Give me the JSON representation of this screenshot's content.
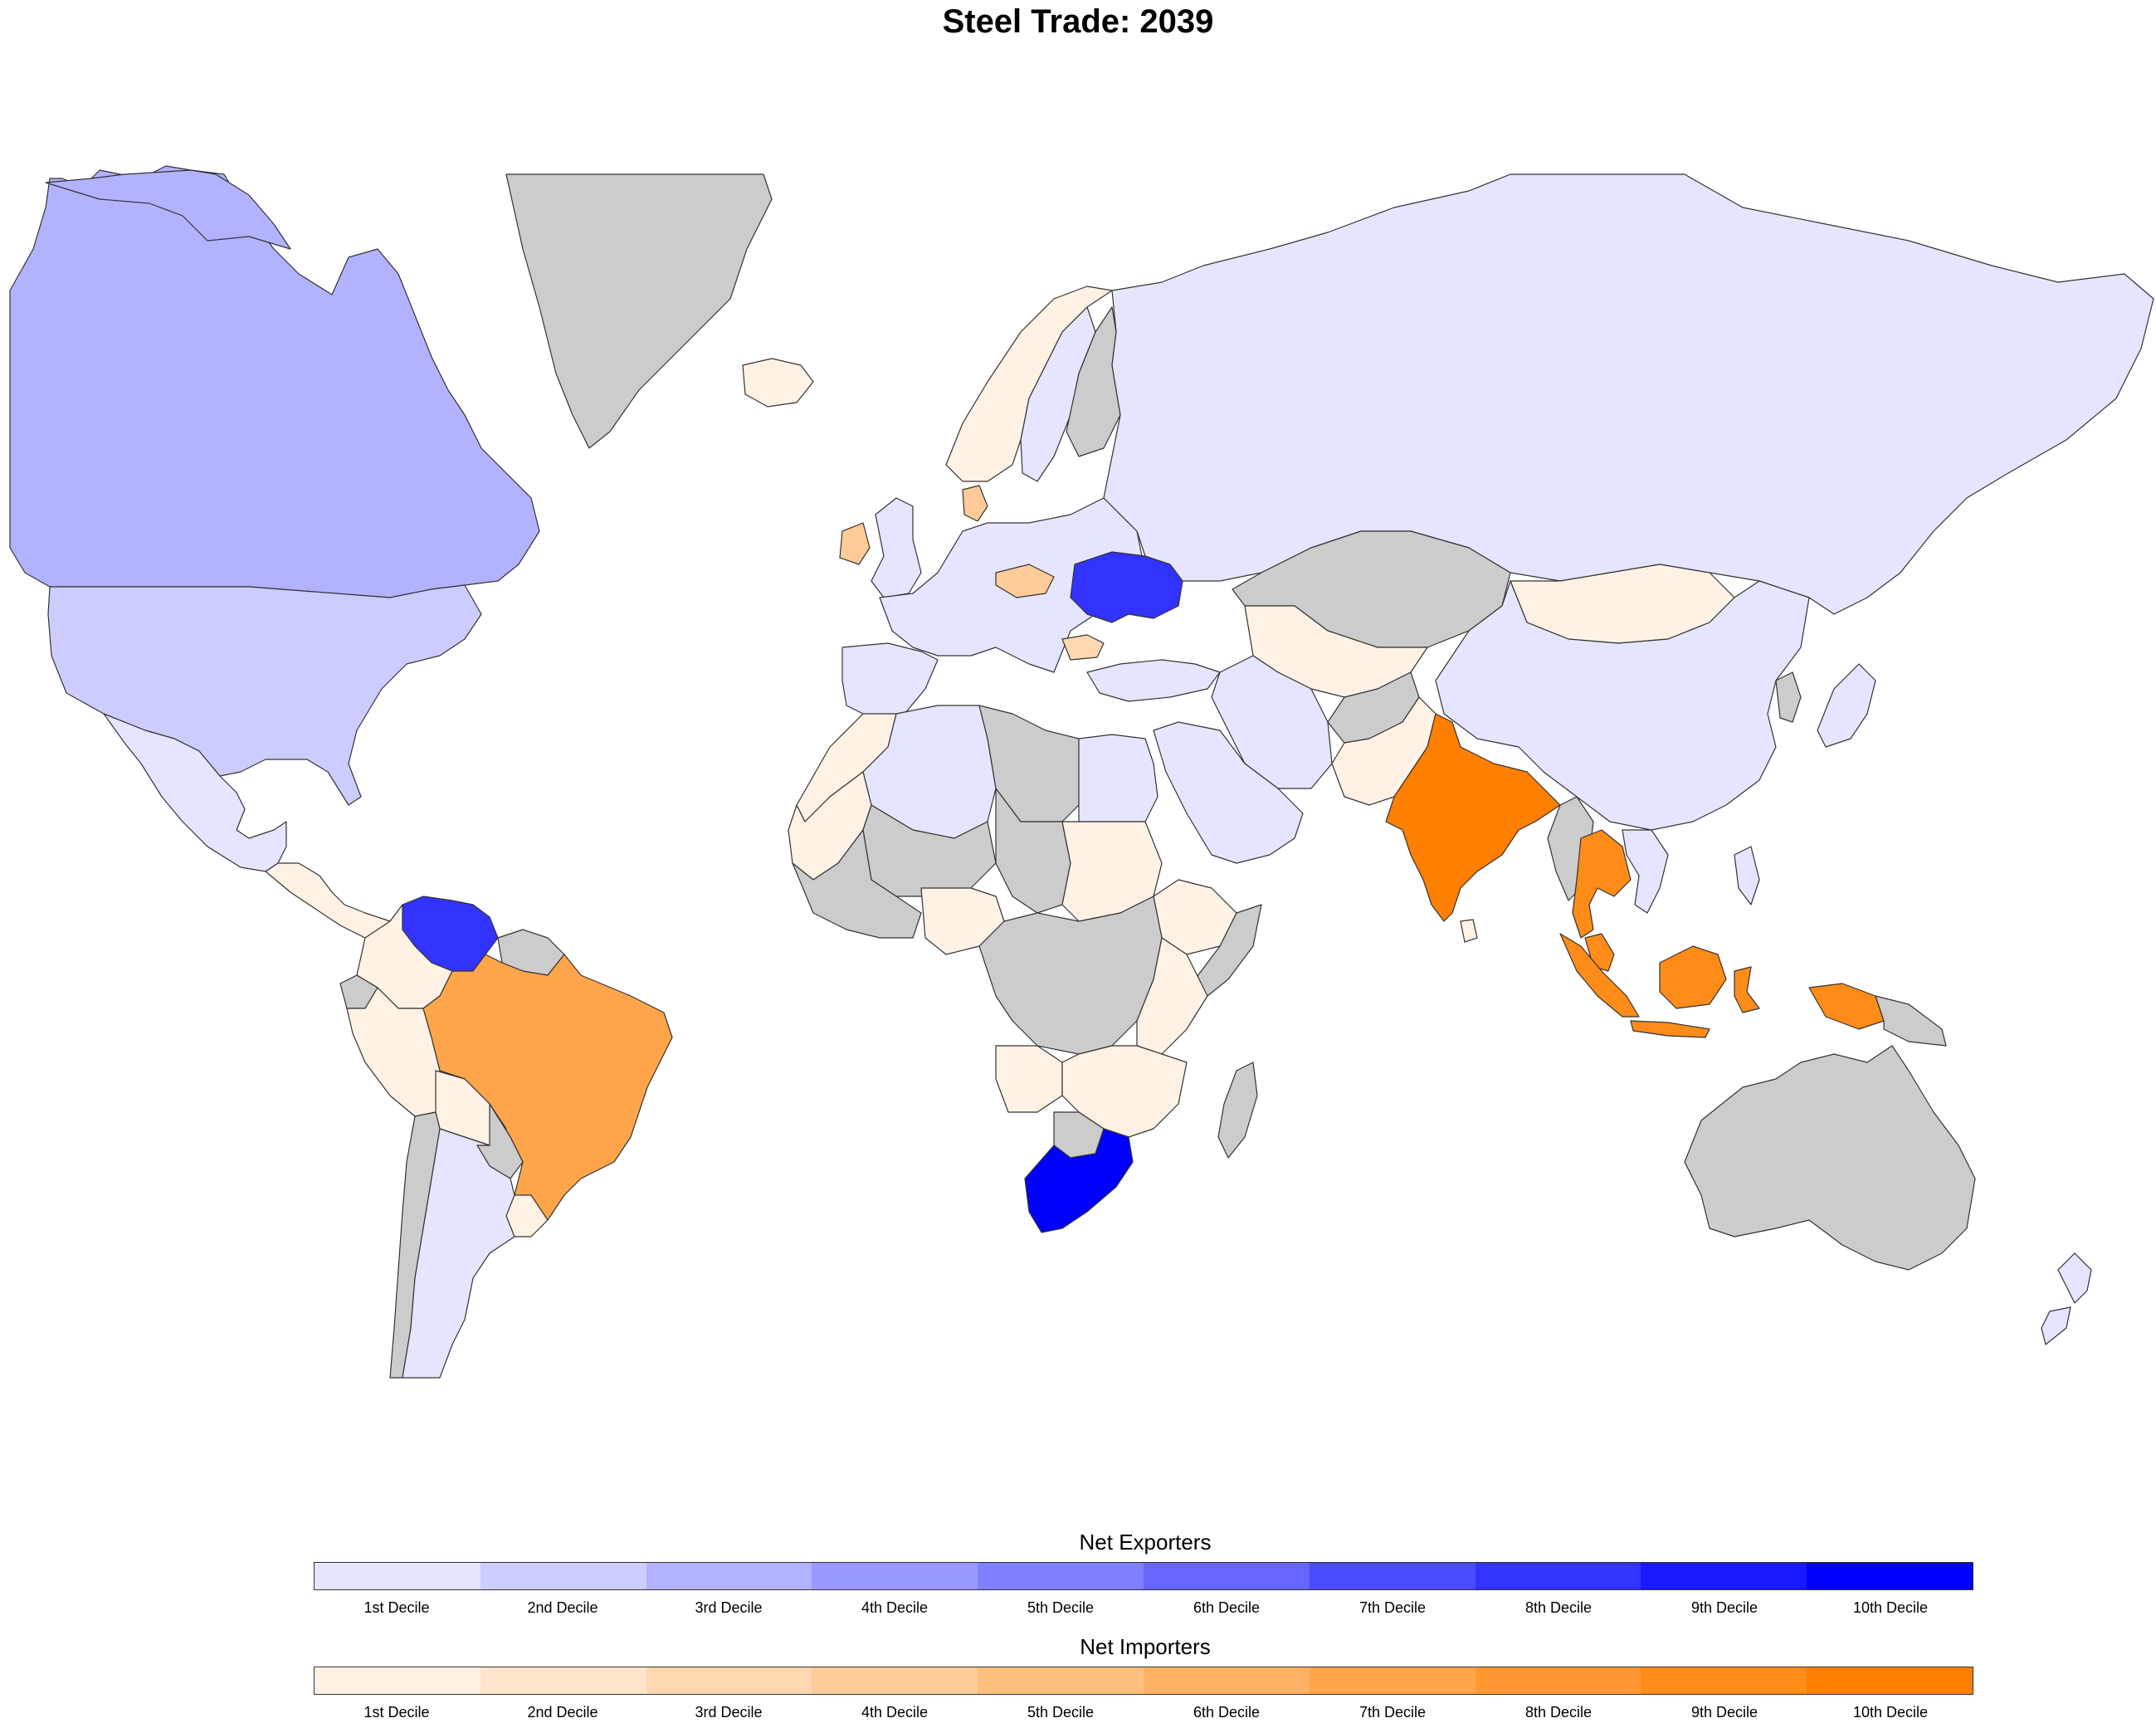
{
  "title": "Steel Trade: 2039",
  "colors": {
    "no_data": "#cccccc",
    "border": "#333333",
    "exporters": [
      "#e5e5ff",
      "#ccccff",
      "#b2b2ff",
      "#9999ff",
      "#7f7fff",
      "#6666ff",
      "#4c4cff",
      "#3333ff",
      "#1919ff",
      "#0000ff"
    ],
    "importers": [
      "#fff2e5",
      "#ffe5cc",
      "#ffd8b2",
      "#ffcb99",
      "#ffbf7f",
      "#ffb266",
      "#ffa54c",
      "#ff9833",
      "#ff8b19",
      "#ff7f00"
    ]
  },
  "legend": {
    "exporters": {
      "title": "Net Exporters",
      "labels": [
        "1st Decile",
        "2nd Decile",
        "3rd Decile",
        "4th Decile",
        "5th Decile",
        "6th Decile",
        "7th Decile",
        "8th Decile",
        "9th Decile",
        "10th Decile"
      ]
    },
    "importers": {
      "title": "Net Importers",
      "labels": [
        "1st Decile",
        "2nd Decile",
        "3rd Decile",
        "4th Decile",
        "5th Decile",
        "6th Decile",
        "7th Decile",
        "8th Decile",
        "9th Decile",
        "10th Decile"
      ]
    }
  },
  "regions": {
    "canada": {
      "side": "exp",
      "decile": 3
    },
    "usa": {
      "side": "exp",
      "decile": 2
    },
    "mexico": {
      "side": "exp",
      "decile": 1
    },
    "greenland": {
      "side": "none"
    },
    "iceland": {
      "side": "imp",
      "decile": 1
    },
    "central_america": {
      "side": "imp",
      "decile": 1
    },
    "venezuela": {
      "side": "exp",
      "decile": 8
    },
    "guianas": {
      "side": "none"
    },
    "colombia": {
      "side": "imp",
      "decile": 1
    },
    "ecuador": {
      "side": "none"
    },
    "peru": {
      "side": "imp",
      "decile": 1
    },
    "brazil": {
      "side": "imp",
      "decile": 7
    },
    "bolivia": {
      "side": "imp",
      "decile": 1
    },
    "paraguay": {
      "side": "none"
    },
    "chile": {
      "side": "none"
    },
    "argentina": {
      "side": "exp",
      "decile": 1
    },
    "uruguay": {
      "side": "imp",
      "decile": 1
    },
    "russia": {
      "side": "exp",
      "decile": 1
    },
    "norway": {
      "side": "imp",
      "decile": 1
    },
    "sweden": {
      "side": "exp",
      "decile": 1
    },
    "finland": {
      "side": "none"
    },
    "uk": {
      "side": "exp",
      "decile": 1
    },
    "ireland": {
      "side": "imp",
      "decile": 4
    },
    "western_europe": {
      "side": "exp",
      "decile": 1
    },
    "iberia": {
      "side": "exp",
      "decile": 1
    },
    "denmark": {
      "side": "imp",
      "decile": 4
    },
    "czechia": {
      "side": "imp",
      "decile": 4
    },
    "ukraine": {
      "side": "exp",
      "decile": 8
    },
    "bulgaria": {
      "side": "imp",
      "decile": 3
    },
    "turkey": {
      "side": "exp",
      "decile": 1
    },
    "kazakhstan": {
      "side": "none"
    },
    "mongolia": {
      "side": "imp",
      "decile": 1
    },
    "china": {
      "side": "exp",
      "decile": 1
    },
    "iran": {
      "side": "exp",
      "decile": 1
    },
    "saudi_arabia": {
      "side": "exp",
      "decile": 1
    },
    "central_asia": {
      "side": "imp",
      "decile": 1
    },
    "afghanistan": {
      "side": "none"
    },
    "pakistan": {
      "side": "imp",
      "decile": 1
    },
    "india": {
      "side": "imp",
      "decile": 10
    },
    "sri_lanka": {
      "side": "imp",
      "decile": 1
    },
    "myanmar": {
      "side": "none"
    },
    "thailand": {
      "side": "imp",
      "decile": 9
    },
    "vietnam": {
      "side": "exp",
      "decile": 1
    },
    "malaysia": {
      "side": "imp",
      "decile": 9
    },
    "indonesia": {
      "side": "imp",
      "decile": 9
    },
    "philippines": {
      "side": "exp",
      "decile": 1
    },
    "japan": {
      "side": "exp",
      "decile": 1
    },
    "korea": {
      "side": "none"
    },
    "png": {
      "side": "none"
    },
    "australia": {
      "side": "none"
    },
    "new_zealand": {
      "side": "exp",
      "decile": 1
    },
    "morocco": {
      "side": "imp",
      "decile": 1
    },
    "algeria": {
      "side": "exp",
      "decile": 1
    },
    "libya": {
      "side": "none"
    },
    "egypt": {
      "side": "exp",
      "decile": 1
    },
    "west_sahel": {
      "side": "imp",
      "decile": 1
    },
    "mali_niger": {
      "side": "none"
    },
    "chad": {
      "side": "none"
    },
    "sudan": {
      "side": "imp",
      "decile": 1
    },
    "ethiopia": {
      "side": "imp",
      "decile": 1
    },
    "somalia": {
      "side": "none"
    },
    "west_coast_africa": {
      "side": "none"
    },
    "nigeria": {
      "side": "imp",
      "decile": 1
    },
    "central_africa": {
      "side": "none"
    },
    "east_africa": {
      "side": "imp",
      "decile": 1
    },
    "angola": {
      "side": "imp",
      "decile": 1
    },
    "southern_africa": {
      "side": "imp",
      "decile": 1
    },
    "botswana": {
      "side": "none"
    },
    "south_africa": {
      "side": "exp",
      "decile": 10
    },
    "madagascar": {
      "side": "none"
    }
  }
}
